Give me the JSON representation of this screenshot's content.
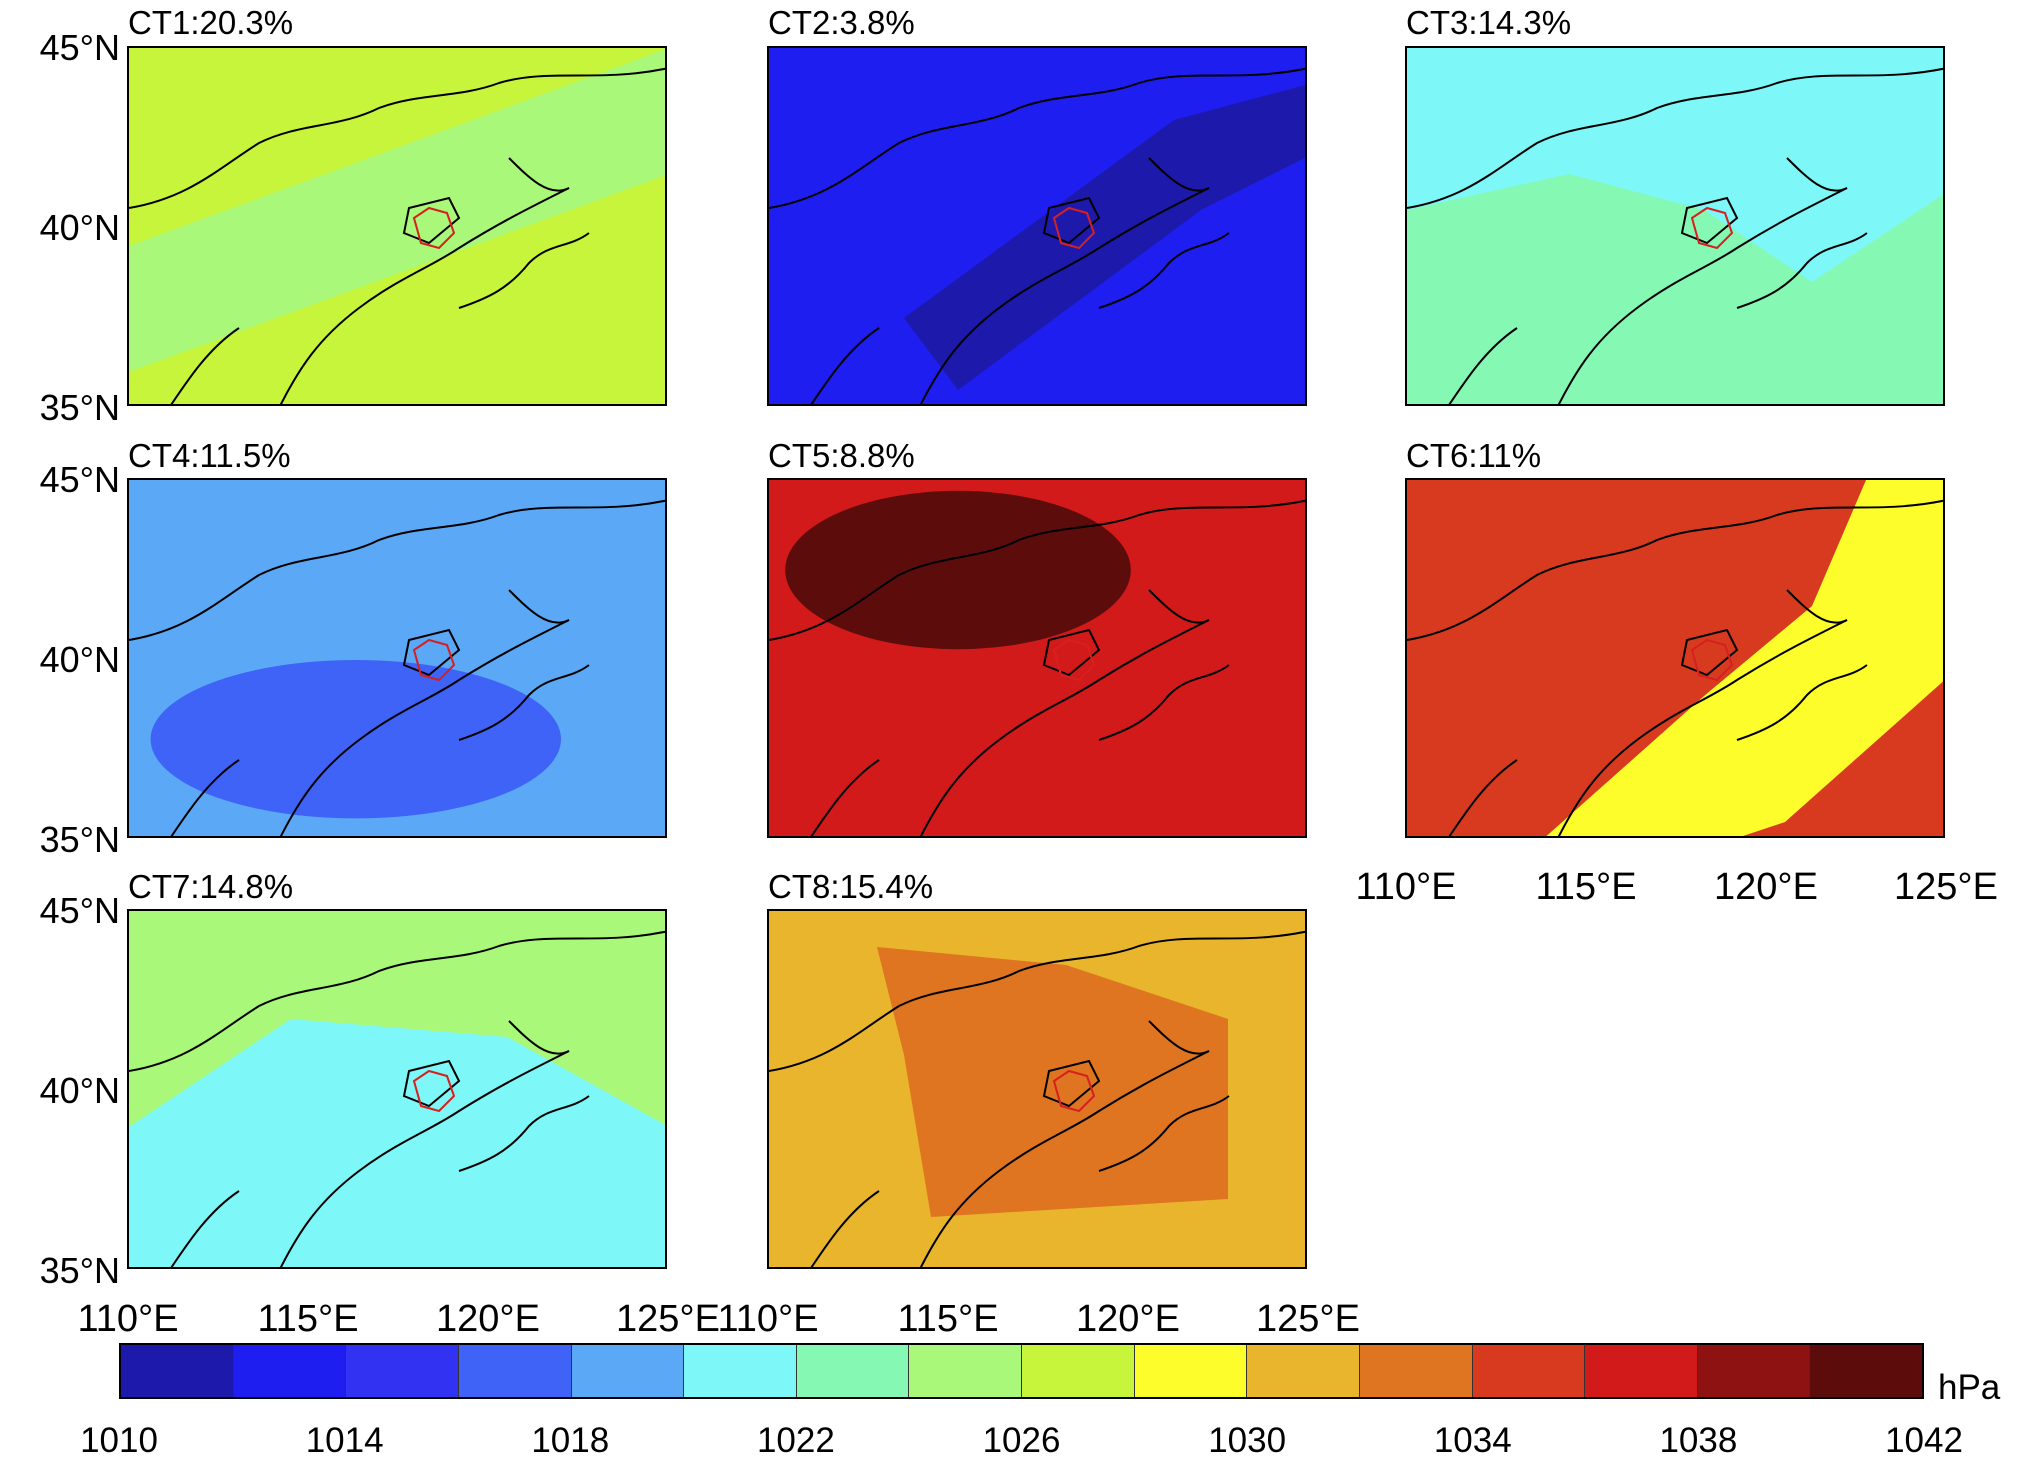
{
  "chart_data": {
    "type": "heatmap",
    "colorbar": {
      "unit": "hPa",
      "levels": [
        1010,
        1012,
        1014,
        1016,
        1018,
        1020,
        1022,
        1024,
        1026,
        1028,
        1030,
        1032,
        1034,
        1036,
        1038,
        1040,
        1042
      ],
      "tick_labels": [
        "1010",
        "1014",
        "1018",
        "1022",
        "1026",
        "1030",
        "1034",
        "1038",
        "1042"
      ],
      "colors": [
        "#1c19ab",
        "#1e1ef0",
        "#3232f3",
        "#3f63f6",
        "#5ba8f6",
        "#7ef7f8",
        "#85f9b4",
        "#a9f87a",
        "#c6f53c",
        "#fdfd2b",
        "#e8b52d",
        "#df7421",
        "#d83a1f",
        "#d21a1a",
        "#8e1212",
        "#5d0c0c"
      ]
    },
    "x_tick_labels": [
      "110°E",
      "115°E",
      "120°E",
      "125°E"
    ],
    "y_tick_labels": [
      "45°N",
      "40°N",
      "35°N"
    ],
    "xlim": [
      110,
      125
    ],
    "ylim": [
      35,
      45
    ],
    "panels": [
      {
        "title": "CT1:20.3%",
        "frequency_percent": 20.3,
        "dominant_level_hpa": 1027,
        "secondary_level_hpa": 1025
      },
      {
        "title": "CT2:3.8%",
        "frequency_percent": 3.8,
        "dominant_level_hpa": 1013,
        "secondary_level_hpa": 1011
      },
      {
        "title": "CT3:14.3%",
        "frequency_percent": 14.3,
        "dominant_level_hpa": 1021,
        "secondary_level_hpa": 1023
      },
      {
        "title": "CT4:11.5%",
        "frequency_percent": 11.5,
        "dominant_level_hpa": 1019,
        "secondary_level_hpa": 1017
      },
      {
        "title": "CT5:8.8%",
        "frequency_percent": 8.8,
        "dominant_level_hpa": 1037,
        "secondary_level_hpa": 1041
      },
      {
        "title": "CT6:11%",
        "frequency_percent": 11,
        "dominant_level_hpa": 1035,
        "secondary_level_hpa": 1029
      },
      {
        "title": "CT7:14.8%",
        "frequency_percent": 14.8,
        "dominant_level_hpa": 1025,
        "secondary_level_hpa": 1021
      },
      {
        "title": "CT8:15.4%",
        "frequency_percent": 15.4,
        "dominant_level_hpa": 1031,
        "secondary_level_hpa": 1033
      }
    ]
  }
}
